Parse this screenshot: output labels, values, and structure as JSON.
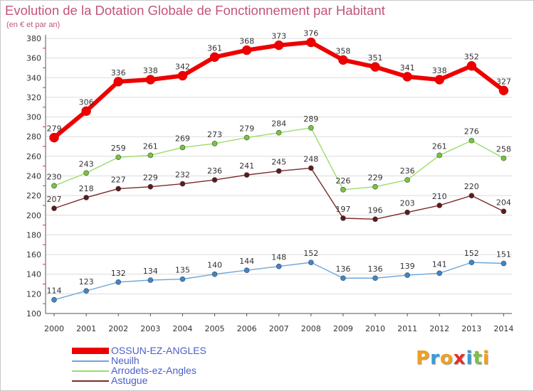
{
  "chart_data": {
    "type": "line",
    "title": "Evolution de la Dotation Globale de Fonctionnement par Habitant",
    "subtitle": "(en € et par an)",
    "xlabel": "",
    "ylabel": "",
    "x": [
      "2000",
      "2001",
      "2002",
      "2003",
      "2004",
      "2005",
      "2006",
      "2007",
      "2008",
      "2009",
      "2010",
      "2011",
      "2012",
      "2013",
      "2014"
    ],
    "ylim": [
      100,
      380
    ],
    "yticks": [
      100,
      120,
      140,
      160,
      180,
      200,
      220,
      240,
      260,
      280,
      300,
      320,
      340,
      360,
      380
    ],
    "grid": "horizontal",
    "legend_position": "bottom-left",
    "series": [
      {
        "name": "OSSUN-EZ-ANGLES",
        "color": "#ee0000",
        "emphasis": true,
        "values": [
          279,
          306,
          336,
          338,
          342,
          361,
          368,
          373,
          376,
          358,
          351,
          341,
          338,
          352,
          327
        ]
      },
      {
        "name": "Neuilh",
        "color": "#6ea6db",
        "point_color": "#3d86cc",
        "values": [
          114,
          123,
          132,
          134,
          135,
          140,
          144,
          148,
          152,
          136,
          136,
          139,
          141,
          152,
          151
        ]
      },
      {
        "name": "Arrodets-ez-Angles",
        "color": "#9bdc6b",
        "point_color": "#74c73c",
        "values": [
          230,
          243,
          259,
          261,
          269,
          273,
          279,
          284,
          289,
          226,
          229,
          236,
          261,
          276,
          258
        ]
      },
      {
        "name": "Astugue",
        "color": "#7a2a2a",
        "point_color": "#5e1a1a",
        "values": [
          207,
          218,
          227,
          229,
          232,
          236,
          241,
          245,
          248,
          197,
          196,
          203,
          210,
          220,
          204
        ]
      }
    ]
  },
  "logo": {
    "letters": [
      "P",
      "r",
      "o",
      "x",
      "i",
      "t",
      "i"
    ],
    "colors": [
      "#f0a020",
      "#3b9ad6",
      "#f0a020",
      "#e2312e",
      "#3b9ad6",
      "#7cc242",
      "#f0a020"
    ]
  }
}
